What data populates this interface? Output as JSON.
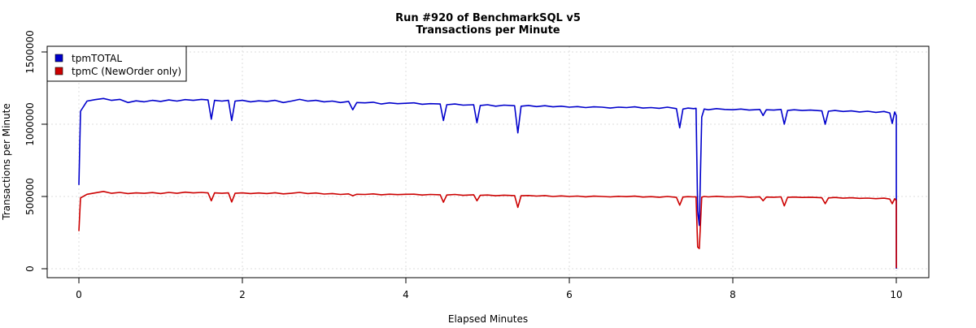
{
  "chart_data": {
    "type": "line",
    "title": "Run #920 of BenchmarkSQL v5",
    "subtitle": "Transactions per Minute",
    "xlabel": "Elapsed Minutes",
    "ylabel": "Transactions per Minute",
    "xlim": [
      0,
      10
    ],
    "ylim": [
      0,
      1500000
    ],
    "xticks": [
      0,
      2,
      4,
      6,
      8,
      10
    ],
    "yticks": [
      0,
      500000,
      1000000,
      1500000
    ],
    "xtick_labels": [
      "0",
      "2",
      "4",
      "6",
      "8",
      "10"
    ],
    "ytick_labels": [
      "0",
      "500000",
      "1000000",
      "1500000"
    ],
    "grid": true,
    "legend_position": "top-left",
    "x": [
      0,
      0.02,
      0.1,
      0.2,
      0.3,
      0.4,
      0.5,
      0.6,
      0.7,
      0.8,
      0.9,
      1.0,
      1.1,
      1.2,
      1.3,
      1.4,
      1.5,
      1.58,
      1.62,
      1.66,
      1.75,
      1.83,
      1.87,
      1.91,
      2.0,
      2.1,
      2.2,
      2.3,
      2.4,
      2.5,
      2.6,
      2.7,
      2.8,
      2.9,
      3.0,
      3.1,
      3.2,
      3.3,
      3.35,
      3.4,
      3.5,
      3.6,
      3.7,
      3.8,
      3.9,
      4.0,
      4.1,
      4.2,
      4.3,
      4.42,
      4.46,
      4.5,
      4.6,
      4.7,
      4.83,
      4.87,
      4.91,
      5.0,
      5.1,
      5.2,
      5.33,
      5.37,
      5.41,
      5.5,
      5.6,
      5.7,
      5.8,
      5.9,
      6.0,
      6.1,
      6.2,
      6.3,
      6.4,
      6.5,
      6.6,
      6.7,
      6.8,
      6.9,
      7.0,
      7.1,
      7.2,
      7.31,
      7.35,
      7.39,
      7.45,
      7.52,
      7.55,
      7.57,
      7.59,
      7.62,
      7.65,
      7.7,
      7.8,
      7.9,
      8.0,
      8.1,
      8.2,
      8.33,
      8.37,
      8.41,
      8.5,
      8.59,
      8.63,
      8.67,
      8.75,
      8.85,
      8.95,
      9.09,
      9.13,
      9.17,
      9.25,
      9.35,
      9.45,
      9.55,
      9.65,
      9.75,
      9.85,
      9.92,
      9.95,
      9.98,
      10.0,
      10.001
    ],
    "series": [
      {
        "name": "tpmTOTAL",
        "color": "#0000cc",
        "values": [
          580000,
          1090000,
          1160000,
          1170000,
          1178000,
          1165000,
          1172000,
          1150000,
          1162000,
          1155000,
          1165000,
          1158000,
          1168000,
          1160000,
          1170000,
          1165000,
          1172000,
          1168000,
          1035000,
          1165000,
          1160000,
          1165000,
          1025000,
          1160000,
          1165000,
          1155000,
          1162000,
          1158000,
          1165000,
          1150000,
          1160000,
          1172000,
          1160000,
          1165000,
          1155000,
          1160000,
          1150000,
          1158000,
          1100000,
          1150000,
          1148000,
          1152000,
          1140000,
          1148000,
          1142000,
          1145000,
          1148000,
          1138000,
          1142000,
          1140000,
          1025000,
          1135000,
          1140000,
          1132000,
          1135000,
          1010000,
          1130000,
          1135000,
          1125000,
          1132000,
          1128000,
          940000,
          1125000,
          1130000,
          1122000,
          1128000,
          1120000,
          1125000,
          1118000,
          1122000,
          1115000,
          1120000,
          1118000,
          1112000,
          1118000,
          1115000,
          1120000,
          1112000,
          1115000,
          1110000,
          1118000,
          1108000,
          975000,
          1105000,
          1112000,
          1108000,
          1110000,
          400000,
          300000,
          1050000,
          1105000,
          1100000,
          1108000,
          1102000,
          1100000,
          1105000,
          1098000,
          1102000,
          1060000,
          1100000,
          1098000,
          1102000,
          1000000,
          1095000,
          1100000,
          1095000,
          1098000,
          1092000,
          1000000,
          1090000,
          1095000,
          1088000,
          1092000,
          1085000,
          1090000,
          1082000,
          1088000,
          1078000,
          1005000,
          1085000,
          1060000,
          0
        ]
      },
      {
        "name": "tpmC (NewOrder only)",
        "color": "#cc0000",
        "values": [
          260000,
          490000,
          515000,
          525000,
          535000,
          522000,
          528000,
          520000,
          525000,
          522000,
          527000,
          520000,
          528000,
          522000,
          530000,
          525000,
          528000,
          525000,
          470000,
          525000,
          522000,
          525000,
          462000,
          522000,
          525000,
          520000,
          524000,
          520000,
          526000,
          518000,
          522000,
          528000,
          520000,
          524000,
          517000,
          520000,
          514000,
          518000,
          505000,
          515000,
          514000,
          518000,
          512000,
          516000,
          513000,
          515000,
          516000,
          510000,
          514000,
          512000,
          460000,
          510000,
          514000,
          508000,
          512000,
          470000,
          508000,
          510000,
          505000,
          509000,
          506000,
          425000,
          505000,
          507000,
          503000,
          506000,
          500000,
          504000,
          500000,
          503000,
          498000,
          502000,
          500000,
          497000,
          501000,
          499000,
          502000,
          496000,
          499000,
          495000,
          500000,
          494000,
          440000,
          496000,
          499000,
          497000,
          498000,
          150000,
          140000,
          495000,
          500000,
          497000,
          501000,
          498000,
          497000,
          500000,
          495000,
          498000,
          470000,
          496000,
          495000,
          497000,
          435000,
          494000,
          496000,
          493000,
          495000,
          491000,
          450000,
          490000,
          493000,
          488000,
          491000,
          487000,
          489000,
          485000,
          488000,
          482000,
          450000,
          485000,
          470000,
          5000
        ]
      }
    ]
  }
}
